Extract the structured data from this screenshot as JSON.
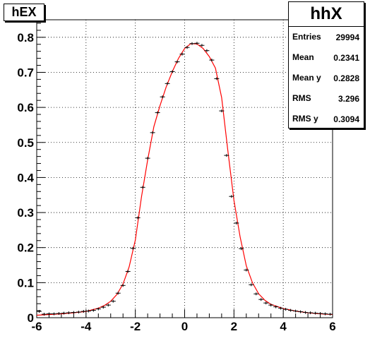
{
  "title": "hEX",
  "stats": {
    "name": "hhX",
    "rows": [
      {
        "label": "Entries",
        "value": "29994"
      },
      {
        "label": "Mean",
        "value": "0.2341"
      },
      {
        "label": "Mean y",
        "value": "0.2828"
      },
      {
        "label": "RMS",
        "value": "3.296"
      },
      {
        "label": "RMS y",
        "value": "0.3094"
      }
    ]
  },
  "colors": {
    "fit_curve": "#ff0000",
    "points": "#000000",
    "grid": "#000000"
  },
  "chart_data": {
    "type": "scatter",
    "title": "hEX",
    "xlabel": "",
    "ylabel": "",
    "xlim": [
      -6,
      6
    ],
    "ylim": [
      0,
      0.85
    ],
    "grid": true,
    "xticks": [
      "-6",
      "-4",
      "-2",
      "0",
      "2",
      "4",
      "6"
    ],
    "yticks": [
      "0",
      "0.1",
      "0.2",
      "0.3",
      "0.4",
      "0.5",
      "0.6",
      "0.7",
      "0.8"
    ],
    "series": [
      {
        "kind": "points_with_error_bars",
        "x": [
          -5.9,
          -5.7,
          -5.5,
          -5.3,
          -5.1,
          -4.9,
          -4.7,
          -4.5,
          -4.3,
          -4.1,
          -3.9,
          -3.7,
          -3.5,
          -3.3,
          -3.1,
          -2.9,
          -2.7,
          -2.5,
          -2.3,
          -2.1,
          -1.9,
          -1.7,
          -1.5,
          -1.3,
          -1.1,
          -0.9,
          -0.7,
          -0.5,
          -0.3,
          -0.1,
          0.1,
          0.3,
          0.5,
          0.7,
          0.9,
          1.1,
          1.3,
          1.5,
          1.7,
          1.9,
          2.1,
          2.3,
          2.5,
          2.7,
          2.9,
          3.1,
          3.3,
          3.5,
          3.7,
          3.9,
          4.1,
          4.3,
          4.5,
          4.7,
          4.9,
          5.1,
          5.3,
          5.5,
          5.7,
          5.9
        ],
        "y": [
          0.018,
          0.01,
          0.011,
          0.011,
          0.012,
          0.013,
          0.014,
          0.015,
          0.016,
          0.018,
          0.019,
          0.021,
          0.025,
          0.03,
          0.036,
          0.047,
          0.07,
          0.092,
          0.132,
          0.198,
          0.285,
          0.372,
          0.455,
          0.528,
          0.585,
          0.63,
          0.668,
          0.702,
          0.73,
          0.752,
          0.771,
          0.782,
          0.783,
          0.777,
          0.762,
          0.735,
          0.682,
          0.59,
          0.463,
          0.346,
          0.27,
          0.197,
          0.136,
          0.094,
          0.068,
          0.052,
          0.042,
          0.036,
          0.031,
          0.027,
          0.024,
          0.021,
          0.019,
          0.017,
          0.015,
          0.014,
          0.013,
          0.012,
          0.011,
          0.01
        ],
        "yerr": 0.004
      },
      {
        "kind": "fit_curve",
        "x": [
          -6,
          -5.5,
          -5,
          -4.5,
          -4,
          -3.5,
          -3.25,
          -3,
          -2.75,
          -2.5,
          -2.25,
          -2,
          -1.75,
          -1.5,
          -1.25,
          -1,
          -0.75,
          -0.5,
          -0.25,
          0,
          0.25,
          0.5,
          0.75,
          1,
          1.25,
          1.5,
          1.75,
          2,
          2.25,
          2.5,
          2.75,
          3,
          3.25,
          3.5,
          4,
          4.5,
          5,
          5.5,
          6
        ],
        "y": [
          0.007,
          0.009,
          0.011,
          0.014,
          0.018,
          0.027,
          0.035,
          0.047,
          0.066,
          0.096,
          0.145,
          0.222,
          0.345,
          0.45,
          0.545,
          0.605,
          0.658,
          0.702,
          0.74,
          0.768,
          0.782,
          0.781,
          0.768,
          0.745,
          0.712,
          0.628,
          0.478,
          0.335,
          0.23,
          0.148,
          0.1,
          0.068,
          0.05,
          0.038,
          0.026,
          0.019,
          0.014,
          0.011,
          0.009
        ]
      }
    ]
  }
}
